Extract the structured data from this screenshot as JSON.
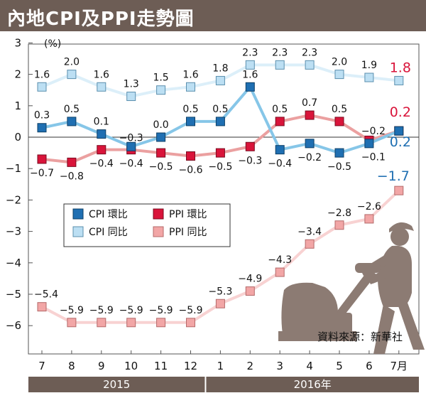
{
  "title": "內地CPI及PPI走勢圖",
  "source": "資料來源：新華社",
  "unit_label": "(%)",
  "colors": {
    "title_bar": "#6d5d55",
    "cpi_mom": "#1f6fb2",
    "cpi_yoy": "#bcdff3",
    "ppi_mom": "#d9143a",
    "ppi_yoy": "#f2a6a6",
    "cpi_mom_line": "#86c6e8",
    "cpi_yoy_line": "#dceff9",
    "ppi_mom_line": "#eba0a0",
    "ppi_yoy_line": "#f8d2d2",
    "illustration": "#8c7b73",
    "highlight_blue": "#1f6fb2",
    "highlight_red": "#d9143a"
  },
  "chart_data": {
    "type": "line",
    "categories": [
      "7",
      "8",
      "9",
      "10",
      "11",
      "12",
      "1",
      "2",
      "3",
      "4",
      "5",
      "6",
      "7月"
    ],
    "year_groups": [
      {
        "label": "2015",
        "from": 0,
        "to": 5
      },
      {
        "label": "2016年",
        "from": 6,
        "to": 12
      }
    ],
    "y_ticks": [
      "3",
      "2",
      "1",
      "0",
      "−1",
      "−2",
      "−3",
      "−4",
      "−5",
      "−6"
    ],
    "ylim": [
      -7,
      3
    ],
    "grid": false,
    "legend_position": "center-left",
    "series": [
      {
        "key": "cpi_yoy",
        "name": "CPI 同比",
        "values": [
          1.6,
          2.0,
          1.6,
          1.3,
          1.5,
          1.6,
          1.8,
          2.3,
          2.3,
          2.3,
          2.0,
          1.9,
          1.8
        ],
        "labels": [
          "1.6",
          "2.0",
          "1.6",
          "1.3",
          "1.5",
          "1.6",
          "1.8",
          "2.3",
          "2.3",
          "2.3",
          "2.0",
          "1.9",
          "1.8"
        ]
      },
      {
        "key": "cpi_mom",
        "name": "CPI 環比",
        "values": [
          0.3,
          0.5,
          0.1,
          -0.3,
          0.0,
          0.5,
          0.5,
          1.6,
          -0.4,
          -0.2,
          -0.5,
          -0.2,
          0.2
        ],
        "labels": [
          "0.3",
          "0.5",
          "0.1",
          "−0.3",
          "0.0",
          "0.5",
          "0.5",
          "1.6",
          "−0.4",
          "−0.2",
          "−0.5",
          "−0.2",
          "0.2"
        ]
      },
      {
        "key": "ppi_mom",
        "name": "PPI 環比",
        "values": [
          -0.7,
          -0.8,
          -0.4,
          -0.4,
          -0.5,
          -0.6,
          -0.5,
          -0.3,
          0.5,
          0.7,
          0.5,
          -0.1,
          0.2
        ],
        "labels": [
          "−0.7",
          "−0.8",
          "−0.4",
          "−0.4",
          "−0.5",
          "−0.6",
          "−0.5",
          "−0.3",
          "0.5",
          "0.7",
          "0.5",
          "−0.1",
          "0.2"
        ]
      },
      {
        "key": "ppi_yoy",
        "name": "PPI 同比",
        "values": [
          -5.4,
          -5.9,
          -5.9,
          -5.9,
          -5.9,
          -5.9,
          -5.3,
          -4.9,
          -4.3,
          -3.4,
          -2.8,
          -2.6,
          -1.7
        ],
        "labels": [
          "−5.4",
          "−5.9",
          "−5.9",
          "−5.9",
          "−5.9",
          "−5.9",
          "−5.3",
          "−4.9",
          "−4.3",
          "−3.4",
          "−2.8",
          "−2.6",
          "−1.7"
        ]
      }
    ],
    "legend": [
      {
        "key": "cpi_mom",
        "label": "CPI 環比"
      },
      {
        "key": "ppi_mom",
        "label": "PPI 環比"
      },
      {
        "key": "cpi_yoy",
        "label": "CPI 同比"
      },
      {
        "key": "ppi_yoy",
        "label": "PPI 同比"
      }
    ]
  }
}
